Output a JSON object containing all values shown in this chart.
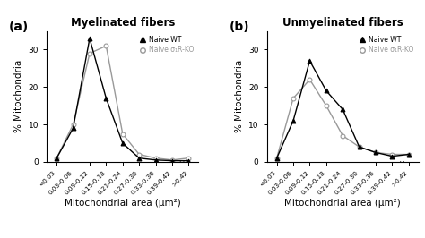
{
  "x_labels": [
    "<0.03",
    "0.03-0.06",
    "0.09-0.12",
    "0.15-0.18",
    "0.21-0.24",
    "0.27-0.30",
    "0.33-0.36",
    "0.39-0.42",
    ">0.42"
  ],
  "panel_a": {
    "title": "Myelinated fibers",
    "wt": [
      1,
      9,
      33,
      17,
      5,
      1,
      0.5,
      0.3,
      0.3
    ],
    "ko": [
      1,
      10,
      29,
      31,
      7.5,
      2,
      1,
      0.5,
      1
    ]
  },
  "panel_b": {
    "title": "Unmyelinated fibers",
    "wt": [
      1,
      11,
      27,
      19,
      14,
      4,
      2.5,
      1.5,
      2
    ],
    "ko": [
      1,
      17,
      22,
      15,
      7,
      4,
      2.5,
      2,
      2
    ]
  },
  "ylabel": "% Mitochondria",
  "xlabel": "Mitochondrial area (μm²)",
  "legend_wt": "Naive WT",
  "legend_ko": "Naive σ₁R-KO",
  "wt_color": "#000000",
  "ko_color": "#999999",
  "ylim": [
    0,
    35
  ],
  "yticks": [
    0,
    10,
    20,
    30
  ]
}
